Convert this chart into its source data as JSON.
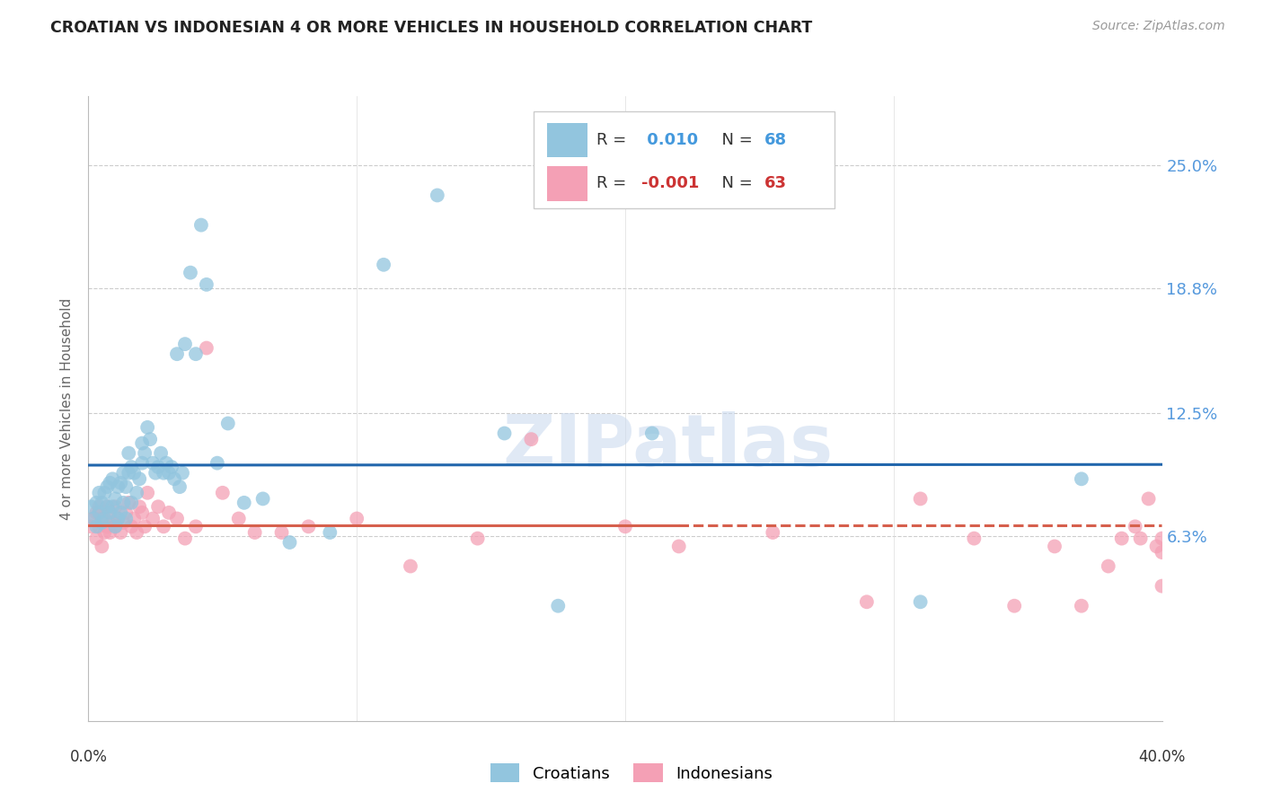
{
  "title": "CROATIAN VS INDONESIAN 4 OR MORE VEHICLES IN HOUSEHOLD CORRELATION CHART",
  "source": "Source: ZipAtlas.com",
  "ylabel": "4 or more Vehicles in Household",
  "ytick_labels": [
    "25.0%",
    "18.8%",
    "12.5%",
    "6.3%"
  ],
  "ytick_values": [
    0.25,
    0.188,
    0.125,
    0.063
  ],
  "xlim": [
    0.0,
    0.4
  ],
  "ylim": [
    -0.03,
    0.285
  ],
  "croatian_R": 0.01,
  "croatian_N": 68,
  "indonesian_R": -0.001,
  "indonesian_N": 63,
  "croatian_color": "#92c5de",
  "indonesian_color": "#f4a0b5",
  "trendline_croatian_color": "#2166ac",
  "trendline_indonesian_color": "#d6604d",
  "croatians_x": [
    0.001,
    0.002,
    0.003,
    0.003,
    0.004,
    0.004,
    0.005,
    0.005,
    0.006,
    0.006,
    0.007,
    0.007,
    0.008,
    0.008,
    0.009,
    0.009,
    0.01,
    0.01,
    0.011,
    0.011,
    0.012,
    0.012,
    0.013,
    0.013,
    0.014,
    0.014,
    0.015,
    0.015,
    0.016,
    0.016,
    0.017,
    0.018,
    0.019,
    0.02,
    0.02,
    0.021,
    0.022,
    0.023,
    0.024,
    0.025,
    0.026,
    0.027,
    0.028,
    0.029,
    0.03,
    0.031,
    0.032,
    0.033,
    0.034,
    0.035,
    0.036,
    0.038,
    0.04,
    0.042,
    0.044,
    0.048,
    0.052,
    0.058,
    0.065,
    0.075,
    0.09,
    0.11,
    0.13,
    0.155,
    0.175,
    0.21,
    0.31,
    0.37
  ],
  "croatians_y": [
    0.078,
    0.072,
    0.068,
    0.08,
    0.075,
    0.085,
    0.07,
    0.08,
    0.072,
    0.085,
    0.078,
    0.088,
    0.075,
    0.09,
    0.078,
    0.092,
    0.068,
    0.082,
    0.072,
    0.088,
    0.075,
    0.09,
    0.08,
    0.095,
    0.072,
    0.088,
    0.095,
    0.105,
    0.08,
    0.098,
    0.095,
    0.085,
    0.092,
    0.1,
    0.11,
    0.105,
    0.118,
    0.112,
    0.1,
    0.095,
    0.098,
    0.105,
    0.095,
    0.1,
    0.095,
    0.098,
    0.092,
    0.155,
    0.088,
    0.095,
    0.16,
    0.196,
    0.155,
    0.22,
    0.19,
    0.1,
    0.12,
    0.08,
    0.082,
    0.06,
    0.065,
    0.2,
    0.235,
    0.115,
    0.028,
    0.115,
    0.03,
    0.092
  ],
  "indonesians_x": [
    0.001,
    0.002,
    0.003,
    0.003,
    0.004,
    0.004,
    0.005,
    0.005,
    0.006,
    0.007,
    0.007,
    0.008,
    0.008,
    0.009,
    0.01,
    0.01,
    0.011,
    0.012,
    0.013,
    0.014,
    0.015,
    0.016,
    0.017,
    0.018,
    0.019,
    0.02,
    0.021,
    0.022,
    0.024,
    0.026,
    0.028,
    0.03,
    0.033,
    0.036,
    0.04,
    0.044,
    0.05,
    0.056,
    0.062,
    0.072,
    0.082,
    0.1,
    0.12,
    0.145,
    0.165,
    0.2,
    0.22,
    0.255,
    0.29,
    0.31,
    0.33,
    0.345,
    0.36,
    0.37,
    0.38,
    0.385,
    0.39,
    0.392,
    0.395,
    0.398,
    0.4,
    0.4,
    0.4
  ],
  "indonesians_y": [
    0.068,
    0.072,
    0.062,
    0.075,
    0.068,
    0.078,
    0.058,
    0.072,
    0.065,
    0.068,
    0.078,
    0.065,
    0.075,
    0.07,
    0.068,
    0.078,
    0.072,
    0.065,
    0.07,
    0.075,
    0.08,
    0.068,
    0.072,
    0.065,
    0.078,
    0.075,
    0.068,
    0.085,
    0.072,
    0.078,
    0.068,
    0.075,
    0.072,
    0.062,
    0.068,
    0.158,
    0.085,
    0.072,
    0.065,
    0.065,
    0.068,
    0.072,
    0.048,
    0.062,
    0.112,
    0.068,
    0.058,
    0.065,
    0.03,
    0.082,
    0.062,
    0.028,
    0.058,
    0.028,
    0.048,
    0.062,
    0.068,
    0.062,
    0.082,
    0.058,
    0.062,
    0.038,
    0.055
  ]
}
